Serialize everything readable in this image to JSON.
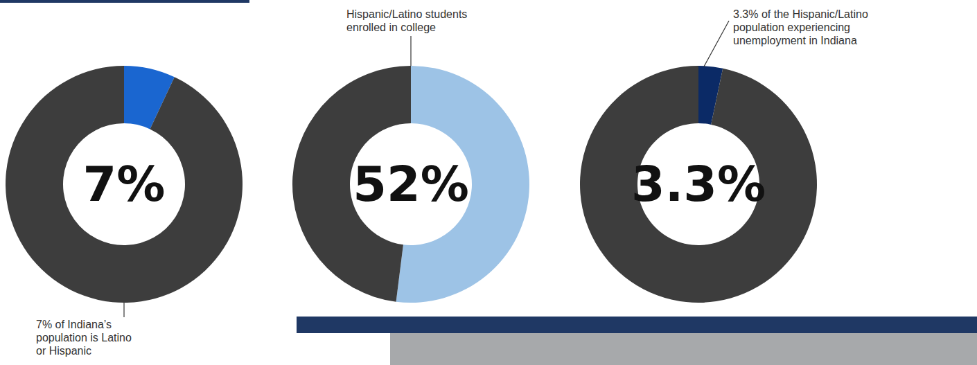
{
  "chart_data": [
    {
      "type": "donut",
      "values": [
        7,
        93
      ],
      "value_labels": [
        "7%",
        null
      ],
      "data_labels": true,
      "colors": [
        "#1a66d0",
        "#3d3d3d"
      ],
      "annotation": "7% of Indiana’s population is Latino or Hispanic"
    },
    {
      "type": "donut",
      "values": [
        52,
        48
      ],
      "value_labels": [
        "52%",
        null
      ],
      "data_labels": true,
      "colors": [
        "#9dc3e6",
        "#3d3d3d"
      ],
      "annotation": "Hispanic/Latino students enrolled in college"
    },
    {
      "type": "donut",
      "values": [
        3.3,
        96.7
      ],
      "value_labels": [
        "3.3%",
        null
      ],
      "data_labels": true,
      "colors": [
        "#0b2a66",
        "#3d3d3d"
      ],
      "annotation": "3.3% of the Hispanic/Latino population experiencing unemployment in Indiana"
    }
  ]
}
